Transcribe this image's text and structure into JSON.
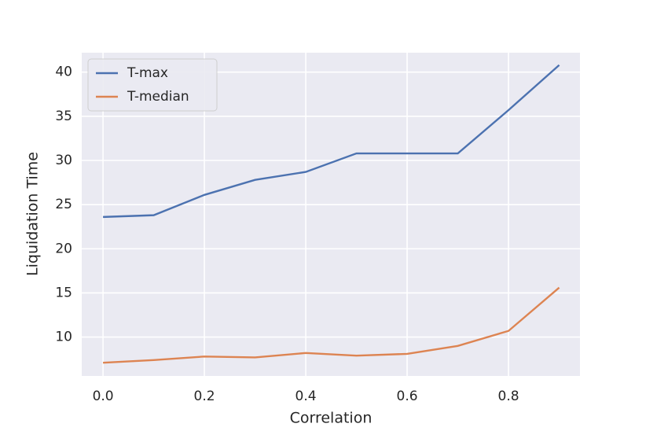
{
  "chart_data": {
    "type": "line",
    "x_label": "Correlation",
    "y_label": "Liquidation Time",
    "x": [
      0.0,
      0.1,
      0.2,
      0.3,
      0.4,
      0.5,
      0.6,
      0.7,
      0.8,
      0.9
    ],
    "series": [
      {
        "name": "T-max",
        "color": "#4c72b0",
        "values": [
          23.6,
          23.8,
          26.1,
          27.8,
          28.7,
          30.8,
          30.8,
          30.8,
          35.7,
          40.8
        ]
      },
      {
        "name": "T-median",
        "color": "#dd8452",
        "values": [
          7.1,
          7.4,
          7.8,
          7.7,
          8.2,
          7.9,
          8.1,
          9.0,
          10.7,
          15.6
        ]
      }
    ],
    "xlim": [
      -0.042,
      0.941
    ],
    "ylim": [
      5.6,
      42.2
    ],
    "xticks": [
      {
        "value": 0,
        "label": "0.0"
      },
      0.2,
      0.4,
      0.6,
      0.8
    ],
    "yticks": [
      10,
      15,
      20,
      25,
      30,
      35,
      40
    ],
    "grid": true,
    "legend": "upper-left"
  }
}
